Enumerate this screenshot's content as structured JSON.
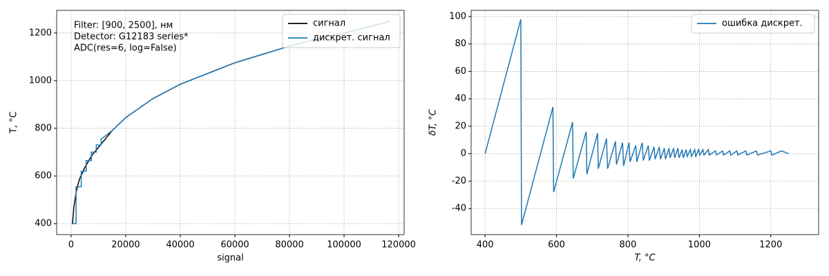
{
  "chart_data": [
    {
      "type": "line",
      "xlabel": "signal",
      "ylabel": "T, °C",
      "annotation": [
        "Filter: [900, 2500], нм",
        "Detector: G12183 series*",
        "ADC(res=6, log=False)"
      ],
      "xlim": [
        -5300,
        122000
      ],
      "ylim": [
        354,
        1295
      ],
      "xticks": [
        0,
        20000,
        40000,
        60000,
        80000,
        100000,
        120000
      ],
      "yticks": [
        400,
        600,
        800,
        1000,
        1200
      ],
      "grid": true,
      "legend": "upper right",
      "series": [
        {
          "name": "сигнал",
          "color": "#000000",
          "x": [
            500,
            1000,
            2000,
            3000,
            5000,
            7500,
            10000,
            15000,
            20000,
            30000,
            40000,
            50000,
            60000,
            70000,
            80000,
            90000,
            100000,
            110000,
            117000
          ],
          "values": [
            400,
            470,
            540,
            585,
            635,
            685,
            720,
            790,
            845,
            925,
            985,
            1030,
            1075,
            1110,
            1145,
            1175,
            1200,
            1228,
            1250
          ]
        },
        {
          "name": "дискрет. сигнал",
          "color": "#1f77b4",
          "x": [
            300,
            1800,
            1800,
            3700,
            3700,
            5500,
            5500,
            7400,
            7400,
            9200,
            9200,
            11000,
            11000,
            15000,
            20000,
            30000,
            40000,
            50000,
            60000,
            70000,
            80000,
            90000,
            100000,
            110000,
            117000
          ],
          "values": [
            400,
            400,
            555,
            555,
            620,
            620,
            665,
            665,
            700,
            700,
            730,
            730,
            755,
            790,
            845,
            925,
            985,
            1030,
            1075,
            1110,
            1145,
            1175,
            1200,
            1228,
            1250
          ]
        }
      ]
    },
    {
      "type": "line",
      "xlabel": "T, °C",
      "ylabel": "δT, °C",
      "xlim": [
        361,
        1334
      ],
      "ylim": [
        -59,
        104.5
      ],
      "xticks": [
        400,
        600,
        800,
        1000,
        1200
      ],
      "yticks": [
        -40,
        -20,
        0,
        20,
        40,
        60,
        80,
        100
      ],
      "grid": true,
      "legend": "upper right",
      "series": [
        {
          "name": "ошибка дискрет.",
          "color": "#1f77b4",
          "x": [
            400,
            500,
            502,
            590,
            592,
            645,
            647,
            683,
            685,
            715,
            717,
            740,
            743,
            765,
            768,
            785,
            788,
            803,
            806,
            822,
            825,
            840,
            843,
            857,
            860,
            873,
            876,
            888,
            891,
            902,
            905,
            915,
            918,
            928,
            931,
            940,
            943,
            952,
            955,
            963,
            966,
            975,
            978,
            987,
            990,
            998,
            1001,
            1010,
            1013,
            1025,
            1028,
            1045,
            1048,
            1065,
            1068,
            1085,
            1088,
            1105,
            1108,
            1130,
            1133,
            1160,
            1163,
            1200,
            1203,
            1230,
            1250
          ],
          "values": [
            0,
            98,
            -52,
            34,
            -28,
            23,
            -18,
            16,
            -15,
            15,
            -11,
            11,
            -11,
            9,
            -8,
            8,
            -9,
            8,
            -6,
            6,
            -6,
            8,
            -5,
            6,
            -5,
            5,
            -4,
            5,
            -4,
            4,
            -4,
            4,
            -3,
            4,
            -3,
            4,
            -3,
            3,
            -3,
            3,
            -2,
            3,
            -2,
            3,
            -2,
            3,
            -1,
            3,
            -1,
            3,
            -1,
            2,
            -1,
            2,
            -1,
            2,
            -1,
            2,
            -1,
            2,
            -1,
            2,
            -1,
            2,
            -1,
            2,
            0
          ]
        }
      ]
    }
  ]
}
